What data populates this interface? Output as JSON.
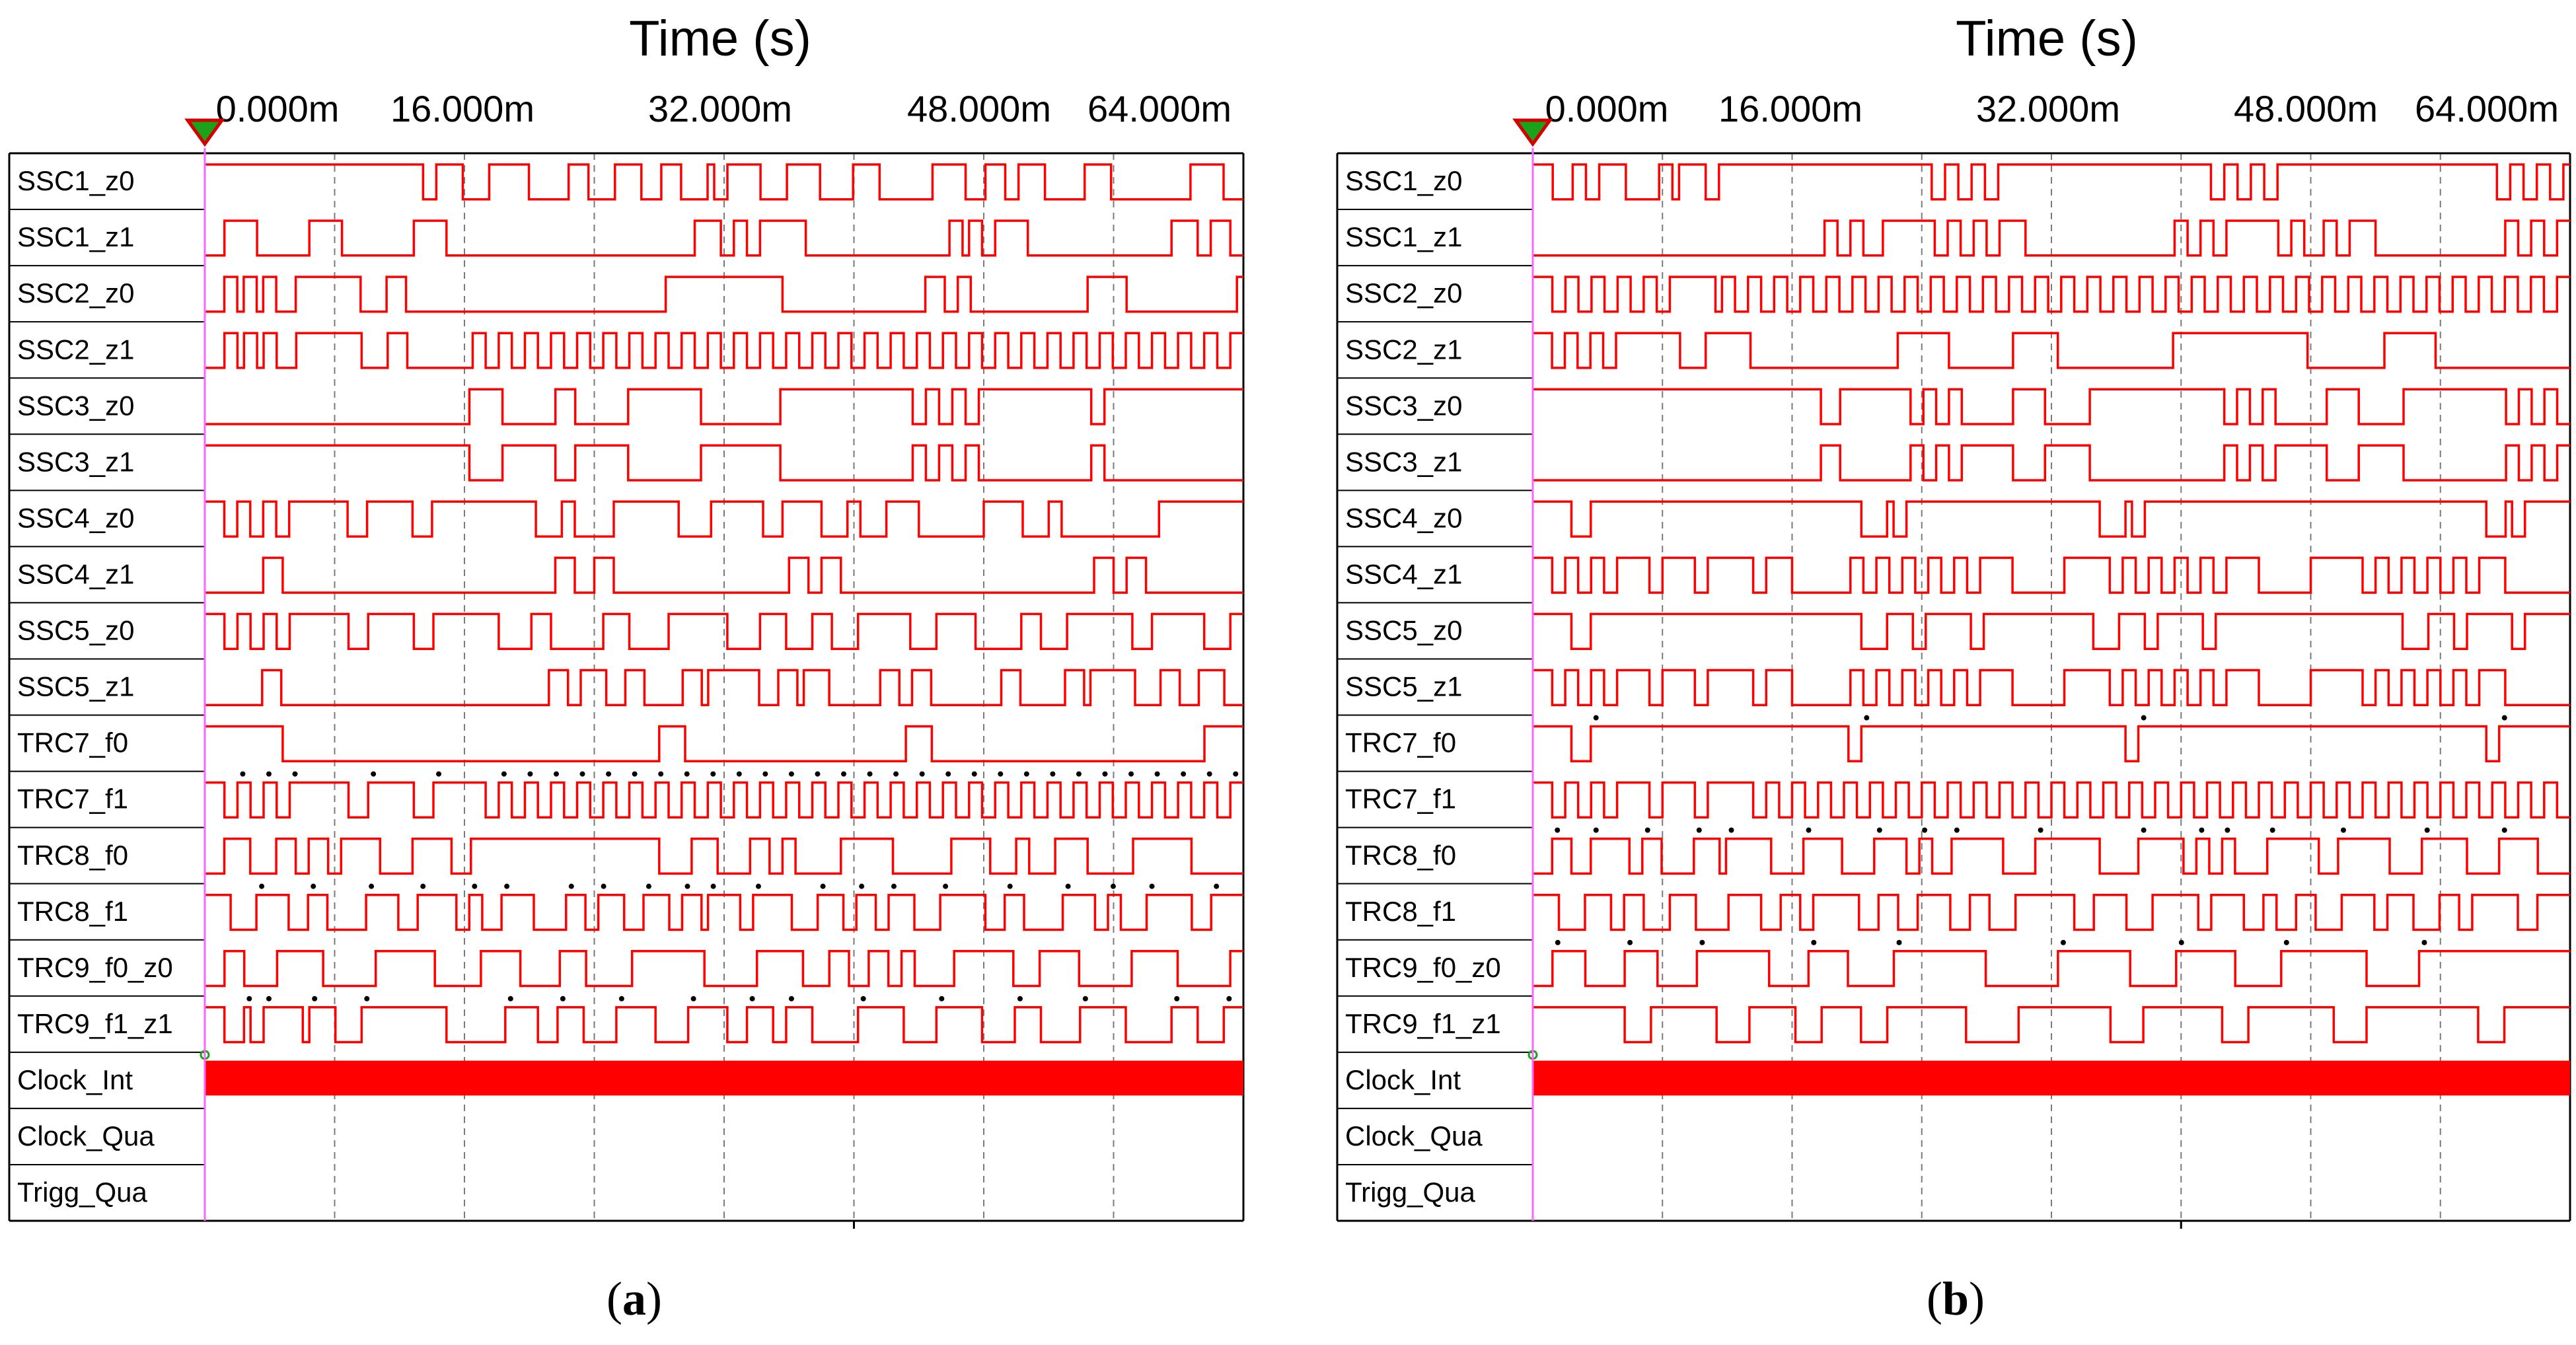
{
  "chart_data": [
    {
      "type": "timing-diagram",
      "panel_label": "a",
      "title": "Time (s)",
      "x_ticks": [
        "0.000m",
        "16.000m",
        "32.000m",
        "48.000m",
        "64.000m"
      ],
      "signals": [
        {
          "name": "SSC1_z0",
          "wave": "HHHHHHHHHHHHHHHHHHHHHHHHHHHHHHHHHLLHHHHLLLLHHHHHHLLLLLLHHHLLLLHHHHLLLHHHLLLLHLLHHHHHLLLLHHHHHLLLLLHHHHLLLLLLLLHHHHHLLLHHHLLHHHHLLLLLLHHHHLLLLLLLLLLLLHHHHHLLL"
        },
        {
          "name": "SSC1_z1",
          "wave": "LLLHHHHHLLLLLLLLHHHHHLLLLLLLLLLLHHHHHLLLLLLLLLLLLLLLLLLLLLLLLLLLLLLLLLLLLLLHHHHLLHHLLHHHHHHHLLLLLLLLLLLLLLLLLLLLLLHHLHHLLHHHHHLLLLLLLLLLLLLLLLLLLLLLHHHHLLHHHLL"
        },
        {
          "name": "SSC2_z0",
          "wave": "LLLHHLHHLHHLLLHHHHHHHHHHLLLLHHHLLLLLLLLLLLLLLLLLLLLLLLLLLLLLLLLLLLLLLLLHHHHHHHHHHHHHHHHHHLLLLLLLLLLLLLLLLLLLLLLHHHLLHHLLLLLLLLLLLLLLLLLLHHHHHHLLLLLLLLLLLLLLLLLH"
        },
        {
          "name": "SSC2_z1",
          "wave": "LLLHHLHHLHHLLLHHHHHHHHHHLLLLHHHLLLLLLLLLLHHLLHHLLHHLLHHLLHHLLHHLLHHLLHHLLHHLLHHLLHHLLHHLLHHLLHHLLHHLLHHLLHHLLHHLLHHLLHHLLHHLLHHLLHHLLHHLLHHLLHHLLHHLLHHLLHHLLHH"
        },
        {
          "name": "SSC3_z0",
          "wave": "LLLLLLLLLLLLLLLLLLLLLLLLLLLLLLLLLLLLLLLLHHHHHLLLLLLLLHHHLLLLLLLLHHHHHHHHHHHLLLLLLLLLLLLHHHHHHHHHHHHHHHHHHHHLLHHLLHHLLHHHHHHHHHHHHHHHHHLLHHHHHHHHHHHHHHHHHHHHH"
        },
        {
          "name": "SSC3_z1",
          "wave": "HHHHHHHHHHHHHHHHHHHHHHHHHHHHHHHHHHHHHHHHLLLLLHHHHHHHHLLLHHHHHHHHLLLLLLLLLLLHHHHHHHHHHHHLLLLLLLLLLLLLLLLLLLLHHLLHHLLHHLLLLLLLLLLLLLLLLLHHLLLLLLLLLLLLLLLLLLLLL"
        },
        {
          "name": "SSC4_z0",
          "wave": "HHHLLHHLLHHLLHHHHHHHHHLLLHHHHHHHLLLHHHHHHHHHHHHHHHHLLLLHHLLLLLLHHHHHHHHHHLLLLLHHHHHHHHLLLHHHHHHLLLLHHLLLLHHHHHLLLLLLLLLLHHHHHHLLLLHHLLLLLLLLLLLLLLLHHHHHHHHHHHHH"
        },
        {
          "name": "SSC4_z1",
          "wave": "LLLLLLLLLHHHLLLLLLLLLLLLLLLLLLLLLLLLLLLLLLLLLLLLLLLLLLHHHLLLHHHLLLLLLLLLLLLLLLLLLLLLLLLLLLHHHLLHHHLLLLLLLLLLLLLLLLLLLLLLLLLLLLLLLLLLLLLLLHHHLLHHHLLLLLLLLLLLLLLL"
        },
        {
          "name": "SSC5_z0",
          "wave": "HHHLLHHLLHHLLHHHHHHHHHLLLHHHHHHHLLLHHHHHHHHHHLLLLLHHHLLLLLLLLHHHHLLLLLLHHHHHHHHHLLLLLHHHHLLLLHHHLLLLHHHHHHHHLLLLHHHHHHLLLLLLLHHHLLLLHHHHHHHHHHLLLHHHHHHHHLLLLHH"
        },
        {
          "name": "SSC5_z1",
          "wave": "LLLLLLLLLHHHLLLLLLLLLLLLLLLLLLLLLLLLLLLLLLLLLLLLLLLLLLHHHLLHHHHLLLHHHLLLLLLHHHLHHHHHHHHLLLHHHLHHHHLLLLLLLLHHHLLHHHLLLLLLLLLLLHHHLLLLLLLHHHLHHHHHHHLLLLHHHLLLHHHHLLL"
        },
        {
          "name": "TRC7_f0",
          "wave": "HHHHHHHHHHHHLLLLLLLLLLLLLLLLLLLLLLLLLLLLLLLLLLLLLLLLLLLLLLLLLLLLLLLLLLHHHHLLLLLLLLLLLLLLLLLLLLLLLLLLLLLLLLLLHHHHLLLLLLLLLLLLLLLLLLLLLLLLLLLLLLLLLLLLLLLLLLHHHHHH"
        },
        {
          "name": "TRC7_f1",
          "wave": "HHHLLHHLLHHLLHHHHHHHHHLLLHHHHHHHLLLHHHHHHHHLLHHLLHHLLHHLLHHLLHHLLHHLLHHLLHHLLHHLLHHLLHHLLHHLLHHLLHHLLHHLLHHLLHHLLHHLLHHLLHHLLHHLLHHLLHHLLHHLLHHLLHHLLHHLLHHLLHH"
        },
        {
          "name": "TRC8_f0",
          "wave": "LLLHHHHLLLLHHHLLHHHLLHHHHHHLLLLLHHHHHHLLLHHHHHHHHHHHHHHHHHHHHHHHHHHHHHLLLLLHHHHLLLLLHHHLLHHLLLLLLLHHHHHHHHLLLLLLLLLHHHHHHLLLLHHLLLLHHHHHLLLLLLLHHHHHHHHHLLLLLLLL"
        },
        {
          "name": "TRC8_f1",
          "wave": "HHHHLLLLHHHHHLLLHHHLLLLLLHHHHHLLLHHHHHHLLHHLLLHHHHHLLLLLHHHLLHHHHLLLHHHHLLHHHLHHHHHLLHHHHHHLLLLHHHHLLHHHLLHHHHLLLLHHHHHHHLLLHHHLLLLLLHHHHHLLHHLLLLHHHHHHHLLLHHHHH"
        },
        {
          "name": "TRC9_f0_z0",
          "wave": "LLLHHHLLLLLHHHHHHHLLLLLLLLHHHHHHHHHLLLLLLLHHHHHHLLLLLLHHHHLLLLLLLHHHHHHHHHHHLLLLLLLLHHHHHHHLLLLHHHLLLHHHLLHHLLLLLLHHHHHHHHHLLLLHHHHHHLLLLLLLLHHHHHHHLLLLLLLLHH"
        },
        {
          "name": "TRC9_f1_z1",
          "wave": "HHHLLLHLLHHHHHHLHHHHLLLLHHHHHHHHHHHHHLLLLLLLLLHHHHHLLLHHHHLLLLLHHHHHHLLLLLHHHHHHLLLHHHHLLHHHHLLLLLLLHHHHHHHLLLLLHHHHHHHLLLLLHHHHLLLLLLHHHHHHHLLLLLLLHHHHLLLLHHH"
        }
      ],
      "marker_rows": [
        "TRC7_f1",
        "TRC8_f1",
        "TRC9_f1_z1"
      ],
      "clock": {
        "name": "Clock_Int",
        "state": "continuous high-frequency"
      },
      "empty_signals": [
        "Clock_Qua",
        "Trigg_Qua"
      ]
    },
    {
      "type": "timing-diagram",
      "panel_label": "b",
      "title": "Time (s)",
      "x_ticks": [
        "0.000m",
        "16.000m",
        "32.000m",
        "48.000m",
        "64.000m"
      ],
      "signals": [
        {
          "name": "SSC1_z0",
          "wave": "HHHLLLHHLLHHHHLLLLLHHLHHHHLLHHHHHHHHHHHHHHHHHHHHHHHHHHHHHHHHLLHHLLHHLLHHHHHHHHHHHHHHHHHHHHHHHHHHHHHHHHLLHHLLHHLLHHHHHHHHHHHHHHHHHHHHHHHHHHHHHHHHHLLHHLLHHLLH"
        },
        {
          "name": "SSC1_z1",
          "wave": "LLLLLLLLLLLLLLLLLLLLLLLLLLLLLLLLLLLLLLLLLLLLLHHLLHHLLLHHHHHHHHLLHHLLHHLLHHHHLLLLLLLLLLLLLLLLLLLLLLLHHLLHHLLHHHHHHHHLLHHLLLHHLLHHHHLLLLLLLLLLLLLLLLLLLLHHLLHHLLHH"
        },
        {
          "name": "SSC2_z0",
          "wave": "HHHLLHHLLHHLLHHLLHHLLHHHHHHHLHHLLHHLLHHLLHHLLHHLLHHLLHHLLHHLLHHLLHHLLHHLLHHLLHHLLHHLLHHLLHHLLHHLLHHLLHHLLHHLLHHLLHHLLHHLLHHLLHHLLHHLLHHLLHHLLHHLLHHLLHHLLHHLLHH"
        },
        {
          "name": "SSC2_z1",
          "wave": "HHHLLHHLLHHLLHHHHHHHHHHLLLLHHHHHHHLLLLLLLLLLLLLLLLLLLLLLLHHHHHHHHLLLLLLLLLLHHHHHHHLLLLLLLLLLLLLLLLLLHHHHHHHHHHHHHHHHHHHHHLLLLLLLLLLLLHHHHHHHHLLLLLLLLLLLLLLLLLLLLL"
        },
        {
          "name": "SSC3_z0",
          "wave": "HHHHHHHHHHHHHHHHHHHHHHHHHHHHHHHHHHHHHHHHHHHHHLLLHHHHHHHHHHHLLHHLLHHLLLLLLLLHHHHHLLLLLLLHHHHHHHHHHHHHHHHHHHHHLLHHLLHHLLLLLLLLHHHHHLLLLLLLHHHHHHHHHHHHHHHHLLHHLLHHLL"
        },
        {
          "name": "SSC3_z1",
          "wave": "LLLLLLLLLLLLLLLLLLLLLLLLLLLLLLLLLLLLLLLLLLLLLHHHLLLLLLLLLLLHHLLHHLLHHHHHHHHLLLLLHHHHHHHLLLLLLLLLLLLLLLLLLLLLHHLLHHLLHHHHHHHHLLLLLHHHHHHHLLLLLLLLLLLLLLLLHHLLHHLLHH"
        },
        {
          "name": "SSC4_z0",
          "wave": "HHHHHHLLLHHHHHHHHHHHHHHHHHHHHHHHHHHHHHHHHHHHHHHHHHHLLLLHLLHHHHHHHHHHHHHHHHHHHHHHHHHHHHHHLLLLHLLHHHHHHHHHHHHHHHHHHHHHHHHHHHHHHHHHHHHHHHHHHHHHHHHHHHHHLLLHLLHHHHHHH"
        },
        {
          "name": "SSC4_z1",
          "wave": "HHHLLHHLLHHLLHHHHHLLHHHHHLLHHHHHHHLLHHHHLLLLLLLLLHHLLHHLLHHLLHHLLHHLLHHHHHLLLLLLLLHHHHHHHLLHHLLHHLLHHLLHHLLHHHHHLLLLLLLLHHHHHHHHLLHHLLHHLLHHLLHHLLHHHHLLLLLLLLLL"
        },
        {
          "name": "SSC5_z0",
          "wave": "HHHHHHLLLHHHHHHHHHHHHHHHHHHHHHHHHHHHHHHHHHHHHHHHHHHLLLLHHHHLLHHHHHHHLLHHHHHHHHHHHHHHHHHLLLLHHHHLLHHHHHHHLLHHHHHHHHHHHHHHHHHHHHHHHHHHHHHLLLLHHHHLLHHHHHHHLLHHHHHHH"
        },
        {
          "name": "SSC5_z1",
          "wave": "HHHLLHHLLHHLLHHHHHLLHHHHHLLHHHHHHHLLHHHHLLLLLLLLLHHLLHHLLHHLLHHLLHHLLHHHHHLLLLLLLLHHHHHHHLLHHLLHHLLHHLLHHLLHHHHHLLLLLLLLHHHHHHHHLLHHLLHHLLHHLLHHLLHHHHLLLLLLLLLL"
        },
        {
          "name": "TRC7_f0",
          "wave": "HHHHHHLLLHHHHHHHHHHHHHHHHHHHHHHHHHHHHHHHHHHHHHHHHLLHHHHHHHHHHHHHHHHHHHHHHHHHHHHHHHHHHHHHHHHHLLHHHHHHHHHHHHHHHHHHHHHHHHHHHHHHHHHHHHHHHHHHHHHHHHHHHHHHLLHHHHHHHHHHH"
        },
        {
          "name": "TRC7_f1",
          "wave": "HHHLLHHLLHHLLHHHHHLLHHHHHLLHHHHHHHLLHHLLHHLLHHLLHHLLHHLLHHLLHHLLHHLLHHLLHHLLHHLLHHLLHHLLHHLLHHLLHHLLHHLLHHLLHHLLHHLLHHLLHHLLHHLLHHLLHHLLHHLLHHLLHHLLHHLLHHLLHHLL"
        },
        {
          "name": "TRC8_f0",
          "wave": "LLLHHHLLLHHHHHHLLHHHLLLLLHHHHLHHHHHHHLLLLLHHHHHHLLLLLHHHHHLLHHLLLHHHHHHHHLLLLLHHHHHHHHHHLLLLLLHHHHHHHLLHHLLHHLLLLLHHHHHHHHLLLHHHHHHHHLLLLLHHHHHHHLLLLLHHHHHHLLLLL"
        },
        {
          "name": "TRC8_f1",
          "wave": "HHHHLLLLHHHHLLHHHLLLLHHHHLLLLLHHHHHLLLHHHLLHHHHHHHLLLHHHLLLHHHHHLLLHHHLLLLHHHHHHHHHLLLHHHHHLLLLHHHHHHHLLHHHHHLLLHHLLLHHHLLLLHHHHHLLHHHHLLLLHHHLLHHHHHHHLLLHHHHH"
        },
        {
          "name": "TRC9_f0_z0",
          "wave": "LLLHHHHHLLLLLLHHHHHLLLLLLHHHHHHHHHHHLLLLLLHHHHHHLLLLLLLHHHHHHHHHHHHHHLLLLLLLLLLLHHHHHHHHHHHLLLLLLLHHHHHHHHHLLLLLLLHHHHHHHHHHHHHLLLLLLLLHHHHHHHHHHHHHHHHHHHHHHH"
        },
        {
          "name": "TRC9_f1_z1",
          "wave": "HHHHHHHHHHHHHHLLLLHHHHHHHHHHLLLLLHHHHHHHLLLLHHHHHHLLLLHHHHHHHHHHHHLLLLLLLLHHHHHHHHHHHHHHLLLLLHHHHHHHHHHHHLLLLHHHHHHHHHHHHHLLLLLHHHHHHHHHHHHHHHHHLLLLHHHHHHHHHH"
        }
      ],
      "marker_rows": [
        "TRC7_f0",
        "TRC8_f0",
        "TRC9_f0_z0"
      ],
      "clock": {
        "name": "Clock_Int",
        "state": "continuous high-frequency"
      },
      "empty_signals": [
        "Clock_Qua",
        "Trigg_Qua"
      ]
    }
  ],
  "captions": {
    "a_open": "(",
    "a_letter": "a",
    "a_close": ")",
    "b_open": "(",
    "b_letter": "b",
    "b_close": ")"
  },
  "colors": {
    "wave": "#ff0000",
    "grid": "#7a7a7a",
    "text": "#000000",
    "cursor": "#ff66ff"
  }
}
